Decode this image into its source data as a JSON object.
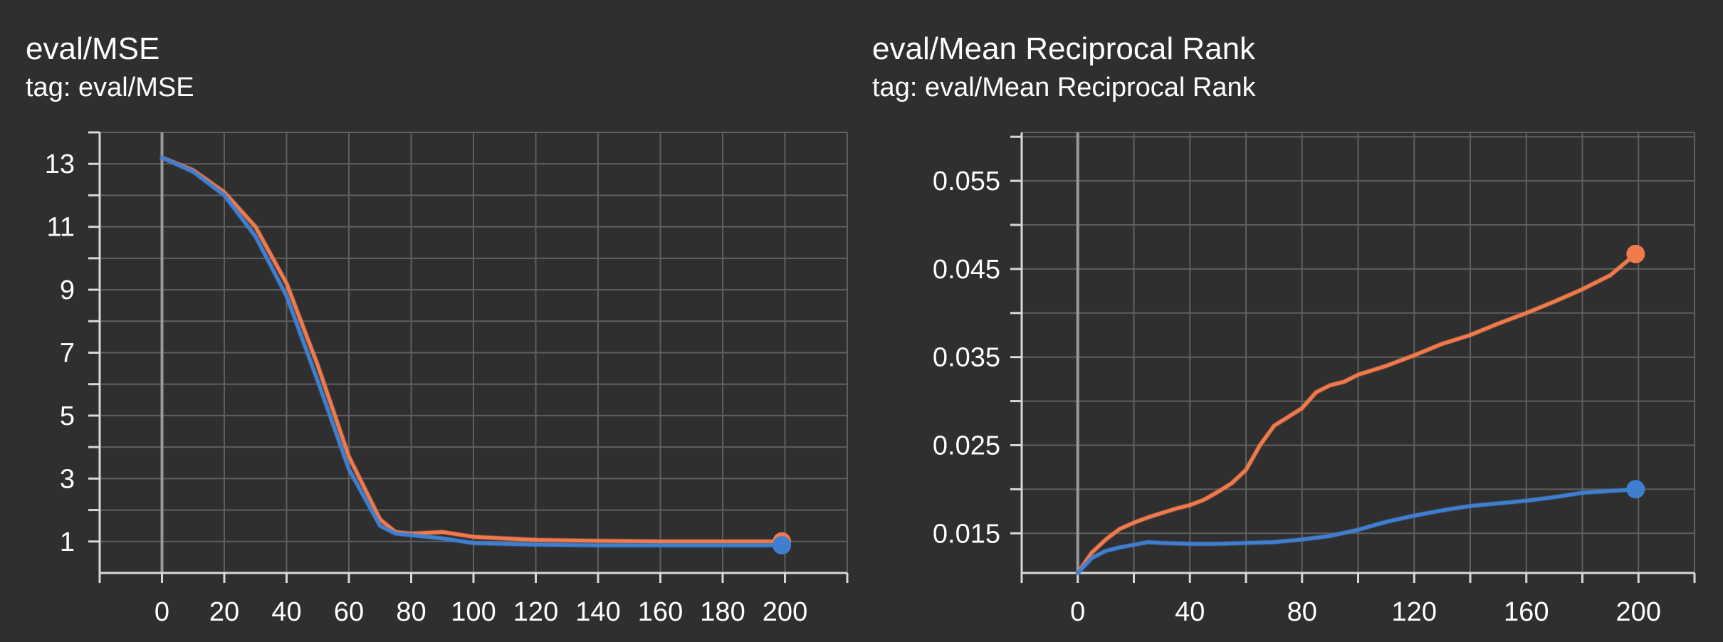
{
  "colors": {
    "background": "#2f2f2f",
    "orange": "#f07a4b",
    "blue": "#3f7fd0",
    "grid": "#5f5f5f",
    "axis": "#d8d8d8",
    "zero_line": "#9a9a9a"
  },
  "chart_data": [
    {
      "type": "line",
      "title": "eval/MSE",
      "subtitle": "tag: eval/MSE",
      "xlabel": "",
      "ylabel": "",
      "xlim": [
        -20,
        220
      ],
      "ylim": [
        0,
        14
      ],
      "xticks": [
        0,
        20,
        40,
        60,
        80,
        100,
        120,
        140,
        160,
        180,
        200
      ],
      "yticks": [
        1,
        3,
        5,
        7,
        9,
        11,
        13
      ],
      "grid": true,
      "series": [
        {
          "color": "orange",
          "x": [
            0,
            10,
            20,
            30,
            40,
            50,
            60,
            70,
            75,
            80,
            90,
            100,
            120,
            140,
            160,
            180,
            199
          ],
          "y": [
            13.2,
            12.8,
            12.1,
            11.0,
            9.2,
            6.6,
            3.7,
            1.7,
            1.3,
            1.25,
            1.3,
            1.15,
            1.05,
            1.02,
            1.0,
            1.0,
            1.0
          ]
        },
        {
          "color": "blue",
          "x": [
            0,
            10,
            20,
            30,
            40,
            50,
            60,
            70,
            75,
            80,
            90,
            100,
            120,
            140,
            160,
            180,
            199
          ],
          "y": [
            13.2,
            12.75,
            12.0,
            10.7,
            8.8,
            6.1,
            3.3,
            1.5,
            1.25,
            1.2,
            1.1,
            0.95,
            0.9,
            0.88,
            0.88,
            0.88,
            0.88
          ]
        }
      ]
    },
    {
      "type": "line",
      "title": "eval/Mean Reciprocal Rank",
      "subtitle": "tag: eval/Mean Reciprocal Rank",
      "xlabel": "",
      "ylabel": "",
      "xlim": [
        -20,
        220
      ],
      "ylim": [
        0.0105,
        0.0605
      ],
      "xticks": [
        0,
        40,
        80,
        120,
        160,
        200
      ],
      "yticks": [
        0.015,
        0.025,
        0.035,
        0.045,
        0.055
      ],
      "ytick_labels": [
        "0.015",
        "0.025",
        "0.035",
        "0.045",
        "0.055"
      ],
      "grid": true,
      "series": [
        {
          "color": "orange",
          "x": [
            0,
            5,
            10,
            15,
            20,
            25,
            30,
            35,
            40,
            45,
            50,
            55,
            60,
            65,
            70,
            75,
            80,
            85,
            90,
            95,
            100,
            110,
            120,
            130,
            140,
            150,
            160,
            170,
            180,
            190,
            199
          ],
          "y": [
            0.0105,
            0.0128,
            0.0143,
            0.0155,
            0.0162,
            0.0168,
            0.0173,
            0.0178,
            0.0182,
            0.0188,
            0.0197,
            0.0207,
            0.0222,
            0.025,
            0.0272,
            0.0282,
            0.0292,
            0.031,
            0.0318,
            0.0322,
            0.033,
            0.034,
            0.0352,
            0.0365,
            0.0375,
            0.0388,
            0.04,
            0.0413,
            0.0427,
            0.0443,
            0.0467
          ]
        },
        {
          "color": "blue",
          "x": [
            0,
            5,
            10,
            15,
            20,
            25,
            30,
            40,
            50,
            60,
            70,
            80,
            90,
            100,
            110,
            120,
            130,
            140,
            150,
            160,
            170,
            180,
            190,
            199
          ],
          "y": [
            0.0105,
            0.0122,
            0.013,
            0.0134,
            0.0137,
            0.014,
            0.0139,
            0.0138,
            0.0138,
            0.0139,
            0.014,
            0.0143,
            0.0147,
            0.0154,
            0.0163,
            0.017,
            0.0176,
            0.0181,
            0.0184,
            0.0187,
            0.0191,
            0.0196,
            0.0198,
            0.02
          ]
        }
      ]
    }
  ]
}
